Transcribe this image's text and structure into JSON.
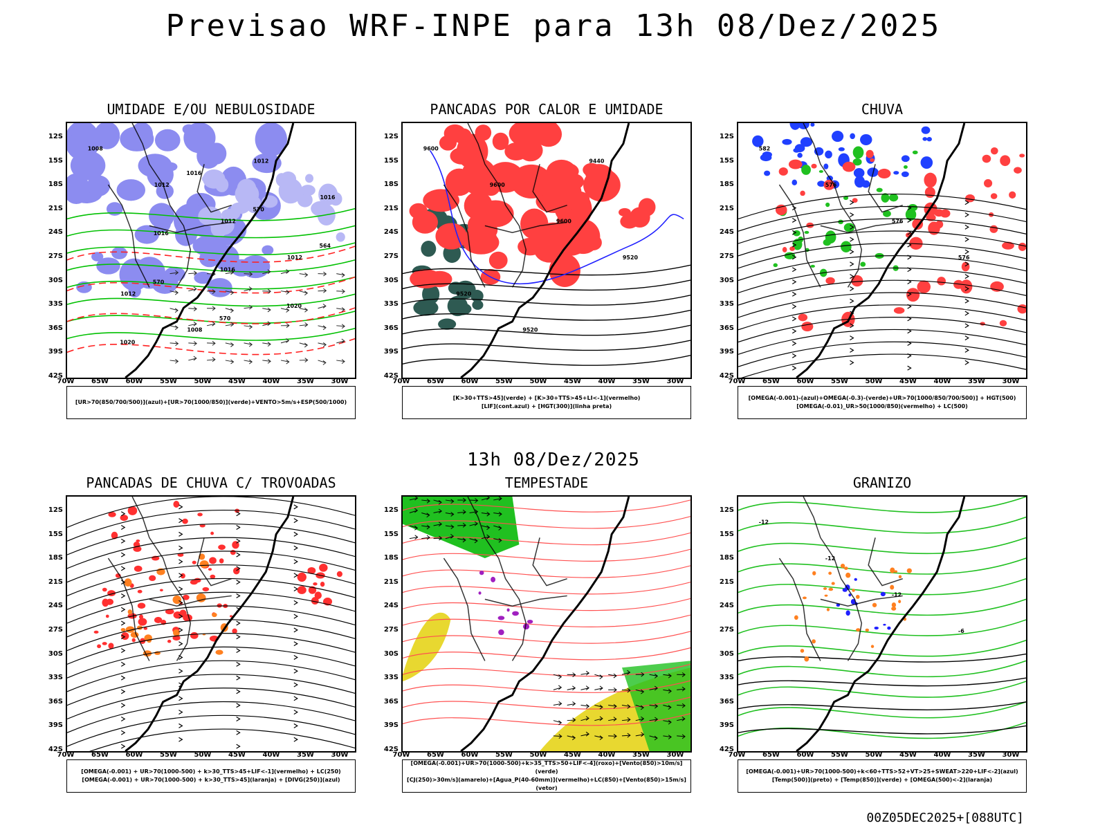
{
  "title": "Previsao WRF-INPE  para 13h 08/Dez/2025",
  "subtitle": "13h 08/Dez/2025",
  "footer": "00Z05DEC2025+[088UTC]",
  "lat_ticks": [
    "12S",
    "15S",
    "18S",
    "21S",
    "24S",
    "27S",
    "30S",
    "33S",
    "36S",
    "39S",
    "42S"
  ],
  "lon_ticks": [
    "70W",
    "65W",
    "60W",
    "55W",
    "50W",
    "45W",
    "40W",
    "35W",
    "30W"
  ],
  "panels": [
    {
      "title": "UMIDADE E/OU NEBULOSIDADE",
      "legend_lines": [
        "[UR>70(850/700/500)](azul)+[UR>70(1000/850)](verde)+VENTO>5m/s+ESP(500/1000)"
      ],
      "contour_labels": [
        "1008",
        "1012",
        "1012",
        "1012",
        "1012",
        "1008",
        "1012",
        "1016",
        "1016",
        "1016",
        "1020",
        "1020",
        "1016",
        "570",
        "564",
        "570",
        "570"
      ],
      "colors": {
        "fill": "#8c8cf0",
        "line": "#00c000",
        "dash": "#ff2020"
      }
    },
    {
      "title": "PANCADAS POR CALOR E UMIDADE",
      "legend_lines": [
        "[K>30+TTS>45](verde)  +  [K>30+TTS>45+LI<-1](vermelho)",
        "[LIF](cont.azul)  +  [HGT(300)](linha preta)"
      ],
      "contour_labels": [
        "9600",
        "9600",
        "9600",
        "9520",
        "9520",
        "9520",
        "9440"
      ],
      "colors": {
        "fill": "#ff4040",
        "dark": "#2e5a52",
        "line": "#2020ff"
      }
    },
    {
      "title": "CHUVA",
      "legend_lines": [
        "[OMEGA(-0.001)-(azul)+OMEGA(-0.3)-(verde)+UR>70(1000/850/700/500)] + HGT(500)",
        "[OMEGA(-0.01)_UR>50(1000/850)(vermelho) + LC(500)"
      ],
      "contour_labels": [
        "582",
        "576",
        "576",
        "576"
      ],
      "colors": {
        "fill": "#ff4040",
        "blue": "#2040ff",
        "green": "#20c020"
      }
    },
    {
      "title": "PANCADAS DE CHUVA C/ TROVOADAS",
      "legend_lines": [
        "[OMEGA(-0.001) + UR>70(1000-500) + k>30_TTS>45+LIF<-1](vermelho) + LC(250)",
        "[OMEGA(-0.001) + UR>70(1000-500) + k>30_TTS>45](laranja) + [DIVG(250)](azul)"
      ],
      "contour_labels": [],
      "colors": {
        "fill": "#ff3030",
        "orange": "#ff8020",
        "blue": "#2020ff"
      }
    },
    {
      "title": "TEMPESTADE",
      "legend_lines": [
        "[OMEGA(-0.001)+UR>70(1000-500)+k>35_TTS>50+LIF<-4](roxo)+[Vento(850)>10m/s](verde)",
        "[CJ(250)>30m/s](amarelo)+[Agua_P(40-60mm)](vermelho)+LC(850)+[Vento(850)>15m/s](vetor)"
      ],
      "contour_labels": [],
      "colors": {
        "yellow": "#e8d830",
        "green": "#20c020",
        "line": "#ff5050",
        "purple": "#a020c0"
      }
    },
    {
      "title": "GRANIZO",
      "legend_lines": [
        "[OMEGA(-0.001)+UR>70(1000-500)+k<60+TTS>52+VT>25+SWEAT>220+LIF<-2](azul)",
        "[Temp(500)](preto) + [Temp(850)](verde) + [OMEGA(500)<-2](laranja)"
      ],
      "contour_labels": [
        "-12",
        "-12",
        "-12",
        "-6"
      ],
      "colors": {
        "green": "#20c020",
        "orange": "#ff8020",
        "blue": "#2020ff"
      }
    }
  ]
}
